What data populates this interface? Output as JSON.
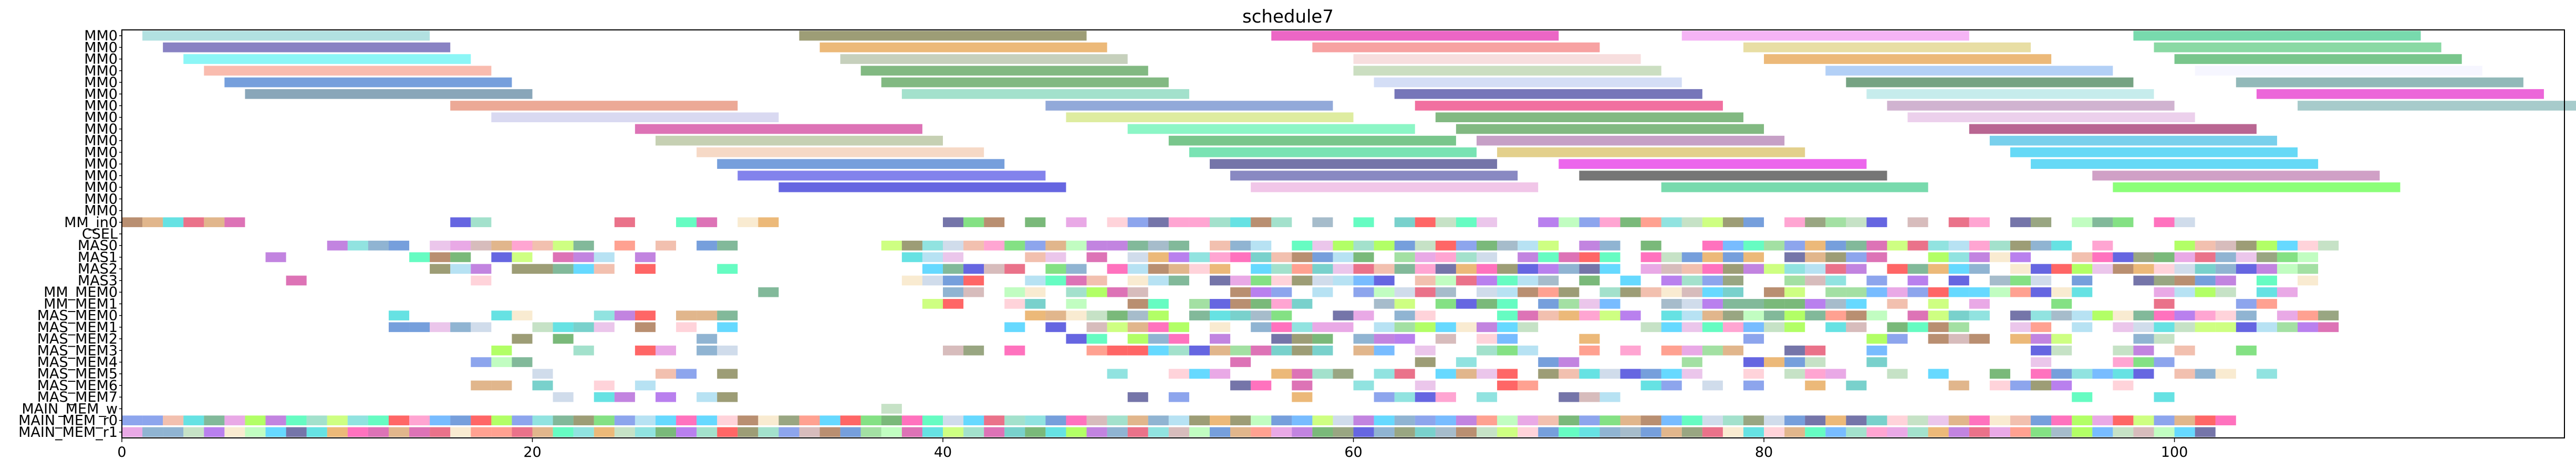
{
  "chart_data": {
    "type": "gantt",
    "title": "schedule7",
    "xlim": [
      0,
      119
    ],
    "x_ticks": [
      0,
      20,
      40,
      60,
      80,
      100
    ],
    "rows": [
      "MM0",
      "MM0",
      "MM0",
      "MM0",
      "MM0",
      "MM0",
      "MM0",
      "MM0",
      "MM0",
      "MM0",
      "MM0",
      "MM0",
      "MM0",
      "MM0",
      "MM0",
      "MM0",
      "MM_in0",
      "CSEL",
      "MAS0",
      "MAS1",
      "MAS2",
      "MAS3",
      "MM_MEM0",
      "MM_MEM1",
      "MAS_MEM0",
      "MAS_MEM1",
      "MAS_MEM2",
      "MAS_MEM3",
      "MAS_MEM4",
      "MAS_MEM5",
      "MAS_MEM6",
      "MAS_MEM7",
      "MAIN_MEM_w",
      "MAIN_MEM_r0",
      "MAIN_MEM_r1"
    ],
    "palette": [
      "#5b5b1a",
      "#e08a20",
      "#2e8b57",
      "#66cdaa",
      "#1a5fc4",
      "#6b8fa8",
      "#e9967a",
      "#b0c4de",
      "#c71585",
      "#a0cfa0",
      "#98fb98",
      "#dda0dd",
      "#8b4513",
      "#4682b4",
      "#191970",
      "#8a2be2",
      "#0000cd",
      "#ffb6c1",
      "#ff6347",
      "#da70d6",
      "#20b2aa",
      "#87ceeb",
      "#00ced1",
      "#ff1493",
      "#ff69b4",
      "#00fa9a",
      "#ff0000",
      "#32cd32",
      "#9932cc",
      "#1e90ff",
      "#00bfff",
      "#7fff00",
      "#adff2f",
      "#f5deb3",
      "#48d1cc",
      "#4169e1",
      "#228b22",
      "#556b2f",
      "#dc143c",
      "#bc8f8f",
      "#66cc66",
      "#cd853f"
    ],
    "mm0_bars": [
      [
        [
          1,
          15,
          "#7fcdcd"
        ],
        [
          33,
          47,
          "#5b5b1a"
        ],
        [
          56,
          70,
          "#e0009e"
        ],
        [
          76,
          90,
          "#ee82ee"
        ],
        [
          98,
          112,
          "#1ec276"
        ]
      ],
      [
        [
          2,
          16,
          "#3b2f9b"
        ],
        [
          34,
          48,
          "#e08a20"
        ],
        [
          58,
          72,
          "#f26464"
        ],
        [
          79,
          93,
          "#d8c868"
        ],
        [
          99,
          113,
          "#3cbf68"
        ]
      ],
      [
        [
          3,
          17,
          "#40f0f0"
        ],
        [
          35,
          49,
          "#a0b090"
        ],
        [
          60,
          74,
          "#f2c8c8"
        ],
        [
          80,
          94,
          "#e08a20"
        ],
        [
          100,
          114,
          "#20a040"
        ]
      ],
      [
        [
          4,
          18,
          "#f5907a"
        ],
        [
          36,
          50,
          "#2e8b2e"
        ],
        [
          60,
          75,
          "#a8c898"
        ],
        [
          83,
          97,
          "#80b0f0"
        ],
        [
          101,
          115,
          "#f0f0ff"
        ]
      ],
      [
        [
          5,
          19,
          "#1a5fc4"
        ],
        [
          37,
          51,
          "#2e8b2e"
        ],
        [
          61,
          76,
          "#b8c8f0"
        ],
        [
          84,
          98,
          "#1a6630"
        ],
        [
          103,
          117,
          "#4a8a8a"
        ]
      ],
      [
        [
          6,
          20,
          "#3a6a8a"
        ],
        [
          38,
          52,
          "#66cdaa"
        ],
        [
          62,
          77,
          "#1a1a8a"
        ],
        [
          85,
          99,
          "#a0e0e0"
        ],
        [
          104,
          118,
          "#e000c0"
        ]
      ],
      [
        [
          16,
          30,
          "#e07050"
        ],
        [
          45,
          59,
          "#4a70c0"
        ],
        [
          63,
          78,
          "#e81060"
        ],
        [
          86,
          100,
          "#b080b0"
        ],
        [
          106,
          120,
          "#6ca8a8"
        ]
      ],
      [
        [
          18,
          32,
          "#c0c0e8"
        ],
        [
          46,
          60,
          "#c8e060"
        ],
        [
          64,
          79,
          "#2e8b2e"
        ],
        [
          87,
          101,
          "#e0b0e0"
        ]
      ],
      [
        [
          25,
          39,
          "#c71585"
        ],
        [
          49,
          63,
          "#40f0a0"
        ],
        [
          65,
          80,
          "#2e8b2e"
        ],
        [
          90,
          104,
          "#8b004a"
        ]
      ],
      [
        [
          26,
          40,
          "#a0b080"
        ],
        [
          51,
          65,
          "#20a040"
        ],
        [
          66,
          81,
          "#a060a0"
        ],
        [
          91,
          105,
          "#20b0e0"
        ]
      ],
      [
        [
          28,
          42,
          "#f0c0a0"
        ],
        [
          52,
          66,
          "#20d080"
        ],
        [
          67,
          82,
          "#d0b040"
        ],
        [
          92,
          106,
          "#00c0f0"
        ]
      ],
      [
        [
          29,
          43,
          "#1a5fc4"
        ],
        [
          53,
          67,
          "#191970"
        ],
        [
          70,
          85,
          "#e000e0"
        ],
        [
          93,
          107,
          "#00c0f0"
        ]
      ],
      [
        [
          30,
          45,
          "#3030e0"
        ],
        [
          54,
          68,
          "#3a3a9a"
        ],
        [
          71,
          86,
          "#1a1a1a"
        ],
        [
          96,
          110,
          "#b060a0"
        ]
      ],
      [
        [
          32,
          46,
          "#0000cd"
        ],
        [
          55,
          69,
          "#e8a0d8"
        ],
        [
          75,
          88,
          "#1ec276"
        ],
        [
          97,
          111,
          "#40ff20"
        ]
      ]
    ]
  }
}
